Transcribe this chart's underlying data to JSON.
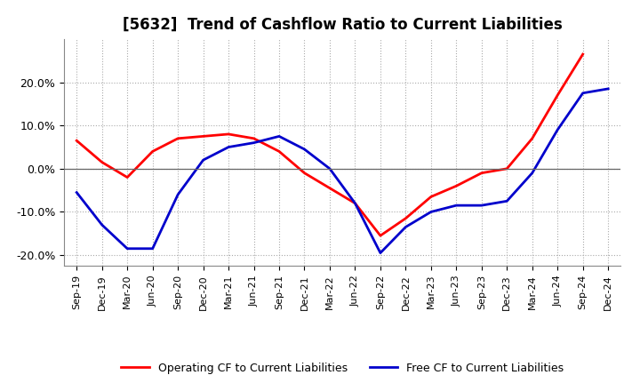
{
  "title": "[5632]  Trend of Cashflow Ratio to Current Liabilities",
  "x_labels": [
    "Sep-19",
    "Dec-19",
    "Mar-20",
    "Jun-20",
    "Sep-20",
    "Dec-20",
    "Mar-21",
    "Jun-21",
    "Sep-21",
    "Dec-21",
    "Mar-22",
    "Jun-22",
    "Sep-22",
    "Dec-22",
    "Mar-23",
    "Jun-23",
    "Sep-23",
    "Dec-23",
    "Mar-24",
    "Jun-24",
    "Sep-24",
    "Dec-24"
  ],
  "operating_cf": [
    0.065,
    0.015,
    -0.02,
    0.04,
    0.07,
    0.075,
    0.08,
    0.07,
    0.04,
    -0.01,
    -0.045,
    -0.08,
    -0.155,
    -0.115,
    -0.065,
    -0.04,
    -0.01,
    0.0,
    0.07,
    0.17,
    0.265,
    null
  ],
  "free_cf": [
    -0.055,
    -0.13,
    -0.185,
    -0.185,
    -0.06,
    0.02,
    0.05,
    0.06,
    0.075,
    0.045,
    0.0,
    -0.08,
    -0.195,
    -0.135,
    -0.1,
    -0.085,
    -0.085,
    -0.075,
    -0.01,
    0.09,
    0.175,
    0.185
  ],
  "ylim": [
    -0.225,
    0.3
  ],
  "yticks": [
    -0.2,
    -0.1,
    0.0,
    0.1,
    0.2
  ],
  "operating_color": "#ff0000",
  "free_color": "#0000cc",
  "background_color": "#ffffff",
  "grid_color": "#aaaaaa",
  "legend_operating": "Operating CF to Current Liabilities",
  "legend_free": "Free CF to Current Liabilities"
}
